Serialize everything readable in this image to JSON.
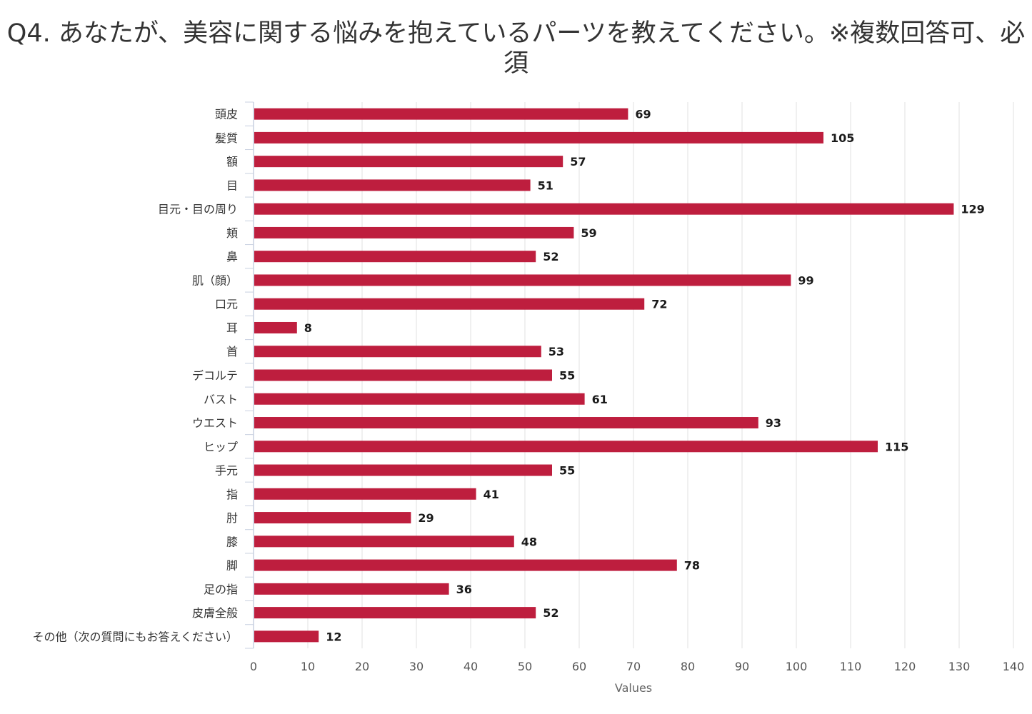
{
  "chart_data": {
    "type": "bar",
    "orientation": "horizontal",
    "title": "Q4. あなたが、美容に関する悩みを抱えているパーツを教えてください。※複数回答可、必須",
    "xlabel": "Values",
    "ylabel": "",
    "xlim": [
      0,
      140
    ],
    "x_ticks": [
      0,
      10,
      20,
      30,
      40,
      50,
      60,
      70,
      80,
      90,
      100,
      110,
      120,
      130,
      140
    ],
    "grid": true,
    "legend": "none",
    "bar_color": "#be1e3e",
    "categories": [
      "頭皮",
      "髪質",
      "額",
      "目",
      "目元・目の周り",
      "頬",
      "鼻",
      "肌（顔）",
      "口元",
      "耳",
      "首",
      "デコルテ",
      "バスト",
      "ウエスト",
      "ヒップ",
      "手元",
      "指",
      "肘",
      "膝",
      "脚",
      "足の指",
      "皮膚全般",
      "その他（次の質問にもお答えください）"
    ],
    "values": [
      69,
      105,
      57,
      51,
      129,
      59,
      52,
      99,
      72,
      8,
      53,
      55,
      61,
      93,
      115,
      55,
      41,
      29,
      48,
      78,
      36,
      52,
      12
    ]
  },
  "colors": {
    "bar": "#be1e3e",
    "grid": "#e0e0e0",
    "axis": "#c8d0e0"
  }
}
